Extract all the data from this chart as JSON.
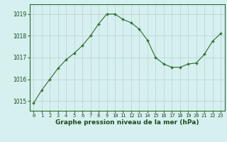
{
  "x": [
    0,
    1,
    2,
    3,
    4,
    5,
    6,
    7,
    8,
    9,
    10,
    11,
    12,
    13,
    14,
    15,
    16,
    17,
    18,
    19,
    20,
    21,
    22,
    23
  ],
  "y": [
    1014.9,
    1015.5,
    1016.0,
    1016.5,
    1016.9,
    1017.2,
    1017.55,
    1018.0,
    1018.55,
    1019.0,
    1019.0,
    1018.75,
    1018.6,
    1018.3,
    1017.8,
    1017.0,
    1016.7,
    1016.55,
    1016.55,
    1016.7,
    1016.75,
    1017.15,
    1017.75,
    1018.1
  ],
  "line_color": "#2d6a2d",
  "marker": "+",
  "marker_size": 3,
  "marker_edge_width": 1.0,
  "line_width": 0.8,
  "bg_color": "#d6f0f0",
  "grid_color": "#b8d0d0",
  "xlabel": "Graphe pression niveau de la mer (hPa)",
  "xlabel_color": "#1a4a1a",
  "ylabel_ticks": [
    1015,
    1016,
    1017,
    1018,
    1019
  ],
  "xlim": [
    -0.5,
    23.5
  ],
  "ylim": [
    1014.55,
    1019.45
  ],
  "tick_color": "#1a4a1a",
  "spine_color": "#2d6a2d",
  "xtick_fontsize": 5,
  "ytick_fontsize": 5.5,
  "xlabel_fontsize": 6.5
}
